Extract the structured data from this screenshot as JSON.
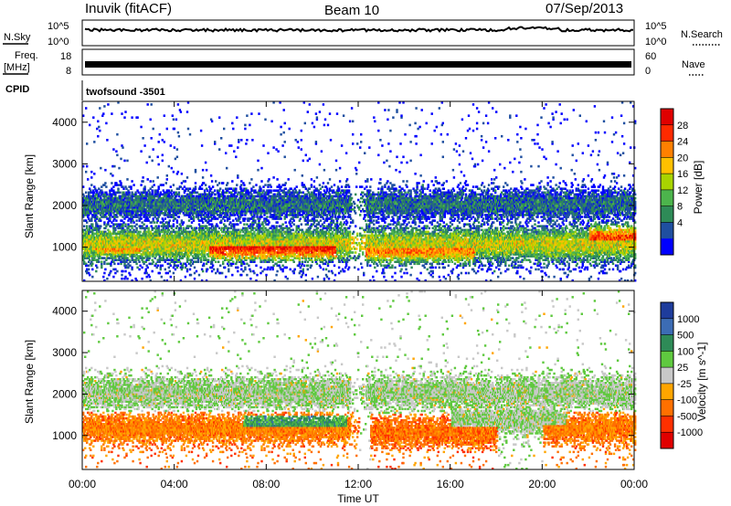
{
  "header": {
    "station": "Inuvik (fitACF)",
    "beam": "Beam 10",
    "date": "07/Sep/2013"
  },
  "status_panels": {
    "nsky_label": "N.Sky",
    "nsky_ticks": [
      "10^5",
      "10^0"
    ],
    "nsearch_label": "N.Search",
    "nsearch_ticks": [
      "10^5",
      "10^0"
    ],
    "freq_label": "Freq.",
    "freq_unit": "[MHz]",
    "freq_ticks": [
      "18",
      "8"
    ],
    "nave_label": "Nave",
    "nave_ticks": [
      "60",
      "0"
    ],
    "cpid_label": "CPID",
    "cpid_value": "twofsound -3501"
  },
  "chart_data": [
    {
      "type": "heatmap",
      "name": "power-panel",
      "ylabel": "Slant Range [km]",
      "xlabel": "",
      "x_range_hours": [
        0,
        24
      ],
      "ylim": [
        180,
        4500
      ],
      "yticks": [
        1000,
        2000,
        3000,
        4000
      ],
      "colorbar": {
        "label": "Power [dB]",
        "ticks": [
          "28",
          "24",
          "20",
          "16",
          "12",
          "8",
          "4"
        ],
        "colors": [
          "#e00000",
          "#ff2a00",
          "#ff8000",
          "#ffc000",
          "#a8d400",
          "#4cb44c",
          "#2e8b57",
          "#1f4fa0",
          "#0000ff"
        ]
      },
      "bands": [
        {
          "start": 0,
          "end": 24,
          "center": 1050,
          "spread": 380,
          "level": 0.55
        },
        {
          "start": 0,
          "end": 24,
          "center": 2000,
          "spread": 300,
          "level": 0.2
        },
        {
          "start": 5.5,
          "end": 11,
          "center": 1000,
          "spread": 330,
          "level": 0.95
        },
        {
          "start": 12.3,
          "end": 17,
          "center": 900,
          "spread": 280,
          "level": 0.75
        },
        {
          "start": 22,
          "end": 24,
          "center": 1200,
          "spread": 300,
          "level": 0.85
        },
        {
          "start": 0.5,
          "end": 2.5,
          "center": 950,
          "spread": 220,
          "level": 0.7
        }
      ]
    },
    {
      "type": "heatmap",
      "name": "velocity-panel",
      "ylabel": "Slant Range [km]",
      "xlabel": "Time UT",
      "x_range_hours": [
        0,
        24
      ],
      "ylim": [
        180,
        4500
      ],
      "yticks": [
        1000,
        2000,
        3000,
        4000
      ],
      "colorbar": {
        "label": "Velocity [m s^-1]",
        "ticks": [
          "1000",
          "500",
          "100",
          "25",
          "-25",
          "-100",
          "-500",
          "-1000"
        ],
        "colors": [
          "#1e3c9c",
          "#3c6cb4",
          "#2e8b57",
          "#5fc93f",
          "#c8c8c8",
          "#ffa500",
          "#ff7000",
          "#ff3000",
          "#e00000"
        ]
      },
      "bands": [
        {
          "start": 0,
          "end": 24,
          "center": 2000,
          "spread": 320,
          "level": 0.45
        },
        {
          "start": 0,
          "end": 12,
          "center": 1150,
          "spread": 300,
          "level": 0.72
        },
        {
          "start": 7,
          "end": 11.5,
          "center": 1200,
          "spread": 250,
          "level": 0.28
        },
        {
          "start": 12.5,
          "end": 18,
          "center": 1050,
          "spread": 300,
          "level": 0.75
        },
        {
          "start": 16,
          "end": 21,
          "center": 1350,
          "spread": 300,
          "level": 0.45
        },
        {
          "start": 20,
          "end": 24,
          "center": 1150,
          "spread": 300,
          "level": 0.72
        }
      ]
    }
  ],
  "time_axis": {
    "ticks": [
      "00:00",
      "04:00",
      "08:00",
      "12:00",
      "16:00",
      "20:00",
      "00:00"
    ],
    "label": "Time UT"
  }
}
